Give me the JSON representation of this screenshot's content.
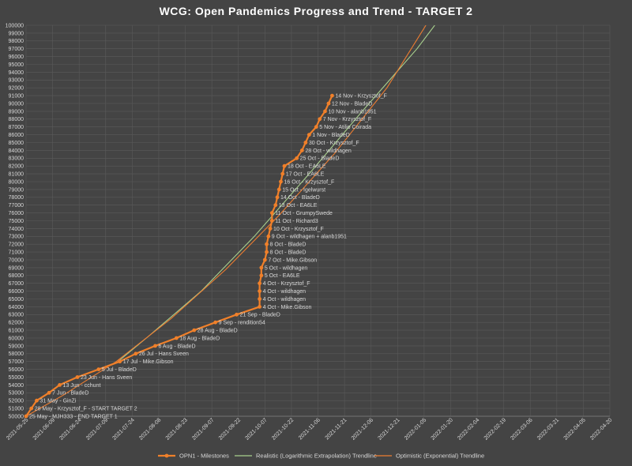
{
  "chart_data": {
    "type": "line",
    "title": "WCG: Open Pandemics Progress and Trend - TARGET 2",
    "xlabel": "",
    "ylabel": "",
    "ylim": [
      50000,
      100000
    ],
    "y_tick_step": 1000,
    "xlim": [
      "2021-05-25",
      "2022-04-20"
    ],
    "x_ticks": [
      "2021-05-25",
      "2021-06-09",
      "2021-06-24",
      "2021-07-09",
      "2021-07-24",
      "2021-08-08",
      "2021-08-23",
      "2021-09-07",
      "2021-09-22",
      "2021-10-07",
      "2021-10-22",
      "2021-11-06",
      "2021-11-21",
      "2021-12-06",
      "2021-12-21",
      "2022-01-05",
      "2022-01-20",
      "2022-02-04",
      "2022-02-19",
      "2022-03-06",
      "2022-03-21",
      "2022-04-05",
      "2022-04-20"
    ],
    "grid": true,
    "legend_position": "bottom",
    "colors": {
      "background": "#444444",
      "grid": "#5a5a5a",
      "milestones": "#f0802a",
      "realistic": "#a9d18e",
      "optimistic": "#ed7d31",
      "text": "#d9d9d9"
    },
    "series": [
      {
        "name": "OPN1 - Milestones",
        "points": [
          {
            "x": "2021-05-25",
            "y": 50000,
            "label": "25 May - MJH333 - END TARGET 1"
          },
          {
            "x": "2021-05-28",
            "y": 51000,
            "label": "28 May - Krzysztof_F - START TARGET 2"
          },
          {
            "x": "2021-05-31",
            "y": 52000,
            "label": "31 May - GinZi"
          },
          {
            "x": "2021-06-07",
            "y": 53000,
            "label": "7 Jun - BladeD"
          },
          {
            "x": "2021-06-13",
            "y": 54000,
            "label": "13 Jun - cchunt"
          },
          {
            "x": "2021-06-23",
            "y": 55000,
            "label": "23 Jun - Hans Sveen"
          },
          {
            "x": "2021-07-05",
            "y": 56000,
            "label": "5 Jul - BladeD"
          },
          {
            "x": "2021-07-17",
            "y": 57000,
            "label": "17 Jul - Mike.Gibson"
          },
          {
            "x": "2021-07-26",
            "y": 58000,
            "label": "26 Jul - Hans Sveen"
          },
          {
            "x": "2021-08-06",
            "y": 59000,
            "label": "6 Aug - BladeD"
          },
          {
            "x": "2021-08-18",
            "y": 60000,
            "label": "18 Aug - BladeD"
          },
          {
            "x": "2021-08-28",
            "y": 61000,
            "label": "28 Aug - BladeD"
          },
          {
            "x": "2021-09-09",
            "y": 62000,
            "label": "9 Sep - rendition54"
          },
          {
            "x": "2021-09-21",
            "y": 63000,
            "label": "21 Sep - BladeD"
          },
          {
            "x": "2021-10-04",
            "y": 64000,
            "label": "4 Oct - Mike.Gibson"
          },
          {
            "x": "2021-10-04",
            "y": 65000,
            "label": "4 Oct - wildhagen"
          },
          {
            "x": "2021-10-04",
            "y": 66000,
            "label": "4 Oct - wildhagen"
          },
          {
            "x": "2021-10-04",
            "y": 67000,
            "label": "4 Oct - Krzysztof_F"
          },
          {
            "x": "2021-10-05",
            "y": 68000,
            "label": "5 Oct - EA6LE"
          },
          {
            "x": "2021-10-05",
            "y": 69000,
            "label": "5 Oct - wildhagen"
          },
          {
            "x": "2021-10-07",
            "y": 70000,
            "label": "7 Oct - Mike.Gibson"
          },
          {
            "x": "2021-10-08",
            "y": 71000,
            "label": "8 Oct - BladeD"
          },
          {
            "x": "2021-10-08",
            "y": 72000,
            "label": "8 Oct - BladeD"
          },
          {
            "x": "2021-10-09",
            "y": 73000,
            "label": "9 Oct - wildhagen + alanb1951"
          },
          {
            "x": "2021-10-10",
            "y": 74000,
            "label": "10 Oct - Krzysztof_F"
          },
          {
            "x": "2021-10-11",
            "y": 75000,
            "label": "11 Oct - Richard3"
          },
          {
            "x": "2021-10-11",
            "y": 76000,
            "label": "11 Oct - GrumpySwede"
          },
          {
            "x": "2021-10-13",
            "y": 77000,
            "label": "13 Oct - EA6LE"
          },
          {
            "x": "2021-10-14",
            "y": 78000,
            "label": "14 Oct - BladeD"
          },
          {
            "x": "2021-10-15",
            "y": 79000,
            "label": "15 Oct - Igelwurst"
          },
          {
            "x": "2021-10-16",
            "y": 80000,
            "label": "16 Oct - Krzysztof_F"
          },
          {
            "x": "2021-10-17",
            "y": 81000,
            "label": "17 Oct - EA6LE"
          },
          {
            "x": "2021-10-18",
            "y": 82000,
            "label": "18 Oct - EA6LE"
          },
          {
            "x": "2021-10-25",
            "y": 83000,
            "label": "25 Oct - BladeD"
          },
          {
            "x": "2021-10-28",
            "y": 84000,
            "label": "28 Oct - wildhagen"
          },
          {
            "x": "2021-10-30",
            "y": 85000,
            "label": "30 Oct - Krzysztof_F"
          },
          {
            "x": "2021-11-01",
            "y": 86000,
            "label": "1 Nov - BladeD"
          },
          {
            "x": "2021-11-05",
            "y": 87000,
            "label": "5 Nov - Atilio Coirada"
          },
          {
            "x": "2021-11-07",
            "y": 88000,
            "label": "7 Nov - Krzysztof_F"
          },
          {
            "x": "2021-11-10",
            "y": 89000,
            "label": "10 Nov - alanb1951"
          },
          {
            "x": "2021-11-12",
            "y": 90000,
            "label": "12 Nov - BladeD"
          },
          {
            "x": "2021-11-14",
            "y": 91000,
            "label": "14 Nov - Krzysztof_F"
          }
        ]
      },
      {
        "name": "Realistic (Logarithmic Extrapolation) Trendline",
        "points": [
          {
            "x": "2021-07-16",
            "y": 57000
          },
          {
            "x": "2021-08-01",
            "y": 60000
          },
          {
            "x": "2021-09-01",
            "y": 66000
          },
          {
            "x": "2021-10-01",
            "y": 73000
          },
          {
            "x": "2021-11-01",
            "y": 81000
          },
          {
            "x": "2021-12-01",
            "y": 89000
          },
          {
            "x": "2022-01-01",
            "y": 97000
          },
          {
            "x": "2022-01-11",
            "y": 100000
          }
        ]
      },
      {
        "name": "Optimistic (Exponential) Trendline",
        "points": [
          {
            "x": "2021-05-25",
            "y": 50000
          },
          {
            "x": "2021-06-15",
            "y": 52700
          },
          {
            "x": "2021-07-15",
            "y": 57000
          },
          {
            "x": "2021-08-15",
            "y": 62500
          },
          {
            "x": "2021-09-15",
            "y": 68800
          },
          {
            "x": "2021-10-15",
            "y": 75700
          },
          {
            "x": "2021-11-15",
            "y": 83500
          },
          {
            "x": "2021-12-15",
            "y": 92000
          },
          {
            "x": "2022-01-06",
            "y": 100000
          }
        ]
      }
    ]
  }
}
